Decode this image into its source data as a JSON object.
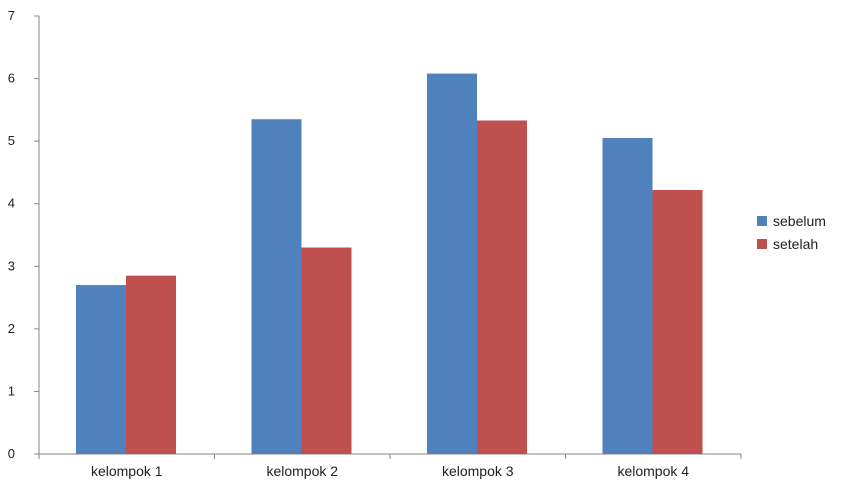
{
  "chart_data": {
    "type": "bar",
    "categories": [
      "kelompok 1",
      "kelompok 2",
      "kelompok 3",
      "kelompok 4"
    ],
    "series": [
      {
        "name": "sebelum",
        "values": [
          2.7,
          5.35,
          6.08,
          5.05
        ],
        "color": "#4f81bd"
      },
      {
        "name": "setelah",
        "values": [
          2.85,
          3.3,
          5.33,
          4.22
        ],
        "color": "#c0504d"
      }
    ],
    "ylim": [
      0,
      7
    ],
    "yticks": [
      0,
      1,
      2,
      3,
      4,
      5,
      6,
      7
    ],
    "grid": false,
    "legend": "right"
  }
}
